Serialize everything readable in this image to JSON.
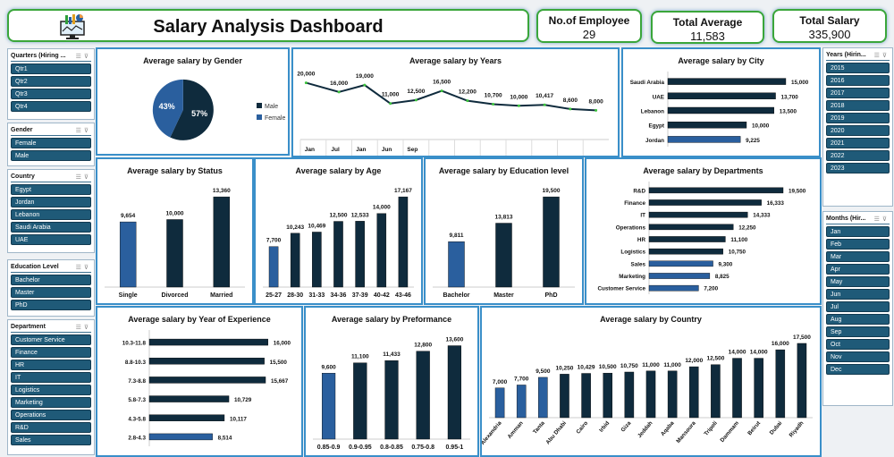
{
  "header": {
    "title": "Salary Analysis Dashboard",
    "logo_icon": "monitor-chart-icon"
  },
  "kpis": [
    {
      "label": "No.of Employee",
      "value": "29"
    },
    {
      "label": "Total Average",
      "value": "11,583"
    },
    {
      "label": "Total Salary",
      "value": "335,900"
    }
  ],
  "colors": {
    "dark": "#0f2b3d",
    "highlight": "#2a5f9e",
    "slicer": "#1f5a78",
    "border": "#3a8fc9",
    "title_border": "#3aa63a",
    "line_marker": "#3cc43c"
  },
  "slicers": {
    "quarters": {
      "title": "Quarters (Hiring ...",
      "items": [
        "Qtr1",
        "Qtr2",
        "Qtr3",
        "Qtr4"
      ]
    },
    "gender": {
      "title": "Gender",
      "items": [
        "Female",
        "Male"
      ]
    },
    "country": {
      "title": "Country",
      "items": [
        "Egypt",
        "Jordan",
        "Lebanon",
        "Saudi Arabia",
        "UAE"
      ]
    },
    "education": {
      "title": "Education Level",
      "items": [
        "Bachelor",
        "Master",
        "PhD"
      ]
    },
    "department": {
      "title": "Department",
      "items": [
        "Customer Service",
        "Finance",
        "HR",
        "IT",
        "Logistics",
        "Marketing",
        "Operations",
        "R&D",
        "Sales"
      ]
    },
    "years": {
      "title": "Years (Hirin...",
      "items": [
        "2015",
        "2016",
        "2017",
        "2018",
        "2019",
        "2020",
        "2021",
        "2022",
        "2023"
      ]
    },
    "months": {
      "title": "Months (Hir...",
      "items": [
        "Jan",
        "Feb",
        "Mar",
        "Apr",
        "May",
        "Jun",
        "Jul",
        "Aug",
        "Sep",
        "Oct",
        "Nov",
        "Dec"
      ]
    }
  },
  "chart_data": [
    {
      "id": "gender",
      "type": "pie",
      "title": "Average salary by Gender",
      "categories": [
        "Male",
        "Female"
      ],
      "values": [
        57,
        43
      ],
      "labels": [
        "57%",
        "43%"
      ],
      "legend": "right"
    },
    {
      "id": "years",
      "type": "line",
      "title": "Average salary by Years",
      "x": [
        "Jan",
        "Jul",
        "Jan",
        "Jun",
        "Sep",
        "",
        "",
        "",
        "",
        "",
        "",
        ""
      ],
      "values": [
        20000,
        16000,
        19000,
        11000,
        12500,
        16500,
        12200,
        10700,
        10000,
        10417,
        8600,
        8000
      ],
      "labels": [
        "20,000",
        "16,000",
        "19,000",
        "11,000",
        "12,500",
        "16,500",
        "12,200",
        "10,700",
        "10,000",
        "10,417",
        "8,600",
        "8,000"
      ]
    },
    {
      "id": "city",
      "type": "bar",
      "orientation": "horizontal",
      "title": "Average salary by City",
      "categories": [
        "Saudi Arabia",
        "UAE",
        "Lebanon",
        "Egypt",
        "Jordan"
      ],
      "values": [
        15000,
        13700,
        13500,
        10000,
        9225
      ],
      "labels": [
        "15,000",
        "13,700",
        "13,500",
        "10,000",
        "9,225"
      ],
      "highlight": [
        "Jordan"
      ]
    },
    {
      "id": "status",
      "type": "bar",
      "orientation": "vertical",
      "title": "Average salary by Status",
      "categories": [
        "Single",
        "Divorced",
        "Married"
      ],
      "values": [
        9654,
        10000,
        13360
      ],
      "labels": [
        "9,654",
        "10,000",
        "13,360"
      ],
      "highlight": [
        "Single"
      ]
    },
    {
      "id": "age",
      "type": "bar",
      "orientation": "vertical",
      "title": "Average salary by Age",
      "categories": [
        "25-27",
        "28-30",
        "31-33",
        "34-36",
        "37-39",
        "40-42",
        "43-46"
      ],
      "values": [
        7700,
        10243,
        10469,
        12500,
        12533,
        14000,
        17167
      ],
      "labels": [
        "7,700",
        "10,243",
        "10,469",
        "12,500",
        "12,533",
        "14,000",
        "17,167"
      ],
      "highlight": [
        "25-27"
      ]
    },
    {
      "id": "education",
      "type": "bar",
      "orientation": "vertical",
      "title": "Average salary by Education level",
      "categories": [
        "Bachelor",
        "Master",
        "PhD"
      ],
      "values": [
        9811,
        13813,
        19500
      ],
      "labels": [
        "9,811",
        "13,813",
        "19,500"
      ],
      "highlight": [
        "Bachelor"
      ]
    },
    {
      "id": "departments",
      "type": "bar",
      "orientation": "horizontal",
      "title": "Average salary by Departments",
      "categories": [
        "R&D",
        "Finance",
        "IT",
        "Operations",
        "HR",
        "Logistics",
        "Sales",
        "Marketing",
        "Customer Service"
      ],
      "values": [
        19500,
        16333,
        14333,
        12250,
        11100,
        10750,
        9300,
        8825,
        7200
      ],
      "labels": [
        "19,500",
        "16,333",
        "14,333",
        "12,250",
        "11,100",
        "10,750",
        "9,300",
        "8,825",
        "7,200"
      ],
      "highlight": [
        "Sales",
        "Marketing",
        "Customer Service"
      ]
    },
    {
      "id": "experience",
      "type": "bar",
      "orientation": "horizontal",
      "title": "Average salary by Year of Experience",
      "categories": [
        "10.3-11.8",
        "8.8-10.3",
        "7.3-8.8",
        "5.8-7.3",
        "4.3-5.8",
        "2.8-4.3"
      ],
      "values": [
        16000,
        15500,
        15667,
        10729,
        10117,
        8514
      ],
      "labels": [
        "16,000",
        "15,500",
        "15,667",
        "10,729",
        "10,117",
        "8,514"
      ],
      "highlight": [
        "2.8-4.3"
      ]
    },
    {
      "id": "performance",
      "type": "bar",
      "orientation": "vertical",
      "title": "Average salary by Preformance",
      "categories": [
        "0.85-0.9",
        "0.9-0.95",
        "0.8-0.85",
        "0.75-0.8",
        "0.95-1"
      ],
      "values": [
        9600,
        11100,
        11433,
        12800,
        13600
      ],
      "labels": [
        "9,600",
        "11,100",
        "11,433",
        "12,800",
        "13,600"
      ],
      "highlight": [
        "0.85-0.9"
      ]
    },
    {
      "id": "country",
      "type": "bar",
      "orientation": "vertical",
      "rotate_labels": true,
      "title": "Average salary by Country",
      "categories": [
        "Alexandria",
        "Amman",
        "Tanta",
        "Abu Dhabi",
        "Cairo",
        "Irbid",
        "Giza",
        "Jeddah",
        "Aqaba",
        "Mansoura",
        "Tripoli",
        "Dammam",
        "Beirut",
        "Dubai",
        "Riyadh"
      ],
      "values": [
        7000,
        7700,
        9500,
        10250,
        10429,
        10500,
        10750,
        11000,
        11000,
        12000,
        12500,
        14000,
        14000,
        16000,
        17500
      ],
      "labels": [
        "7,000",
        "7,700",
        "9,500",
        "10,250",
        "10,429",
        "10,500",
        "10,750",
        "11,000",
        "11,000",
        "12,000",
        "12,500",
        "14,000",
        "14,000",
        "16,000",
        "17,500"
      ],
      "highlight": [
        "Alexandria",
        "Amman",
        "Tanta"
      ]
    }
  ]
}
